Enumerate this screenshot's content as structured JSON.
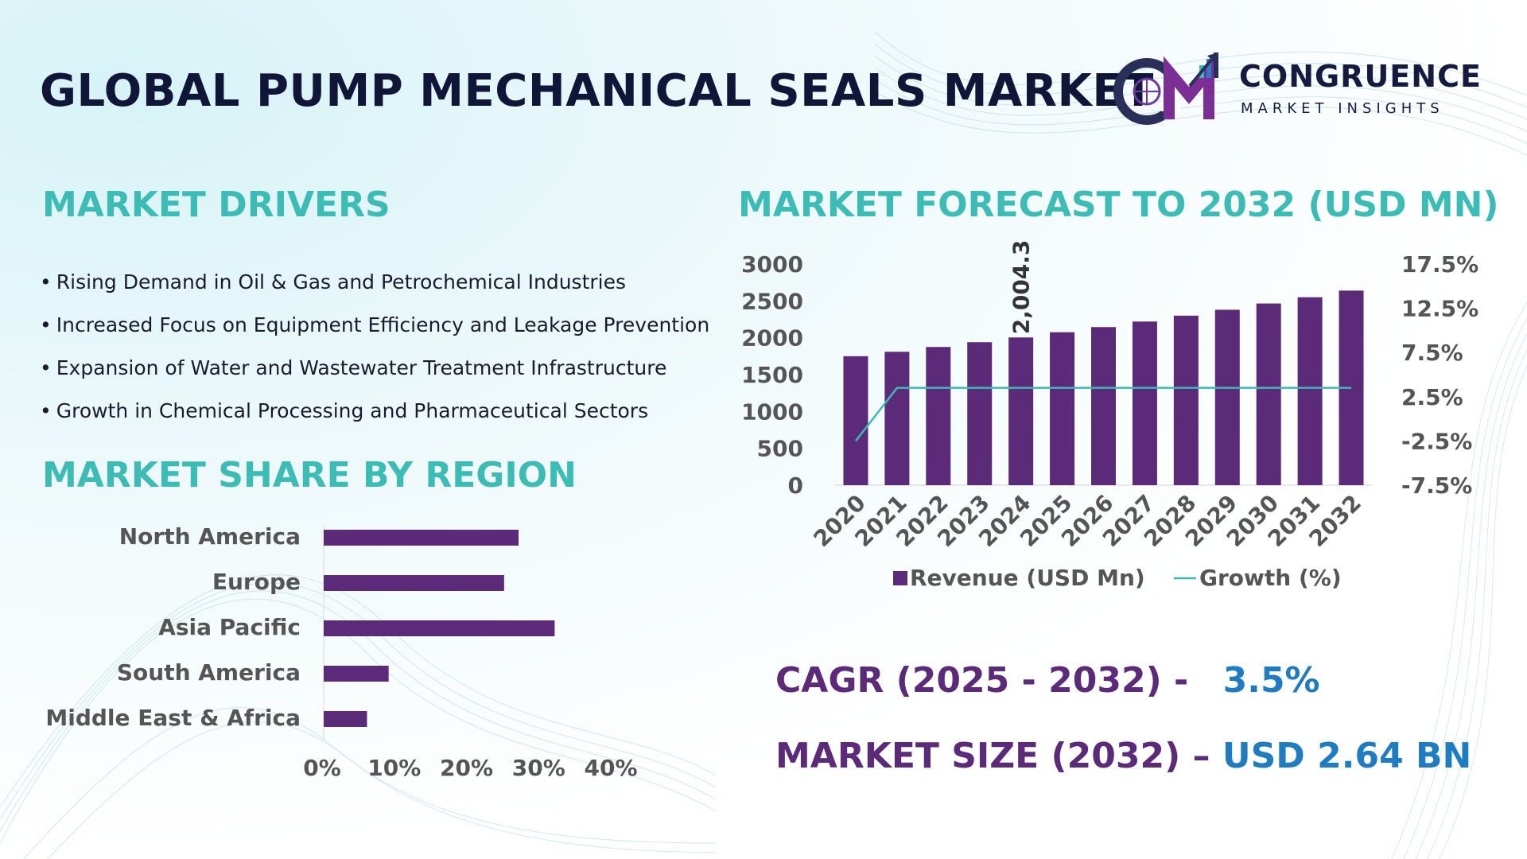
{
  "header": {
    "title": "GLOBAL PUMP MECHANICAL SEALS MARKET"
  },
  "logo": {
    "initials": "CM",
    "name": "CONGRUENCE",
    "tagline": "MARKET INSIGHTS"
  },
  "drivers": {
    "title": "MARKET DRIVERS",
    "items": [
      "Rising Demand in Oil & Gas and Petrochemical Industries",
      "Increased Focus on Equipment Efficiency and Leakage Prevention",
      "Expansion of Water and Wastewater Treatment Infrastructure",
      "Growth in Chemical Processing and Pharmaceutical Sectors"
    ]
  },
  "region": {
    "title": "MARKET SHARE BY REGION"
  },
  "forecast": {
    "title": "MARKET FORECAST TO 2032 (USD MN)"
  },
  "stats": {
    "cagr_label": "CAGR (2025 - 2032) -",
    "cagr_value": "3.5%",
    "size_label": "MARKET SIZE (2032) –",
    "size_value": "USD 2.64 BN"
  },
  "colors": {
    "bar": "#5b2a78",
    "line": "#3cb8b8",
    "teal": "#3cbcb4",
    "navy": "#101638",
    "accent": "#1f7cc0"
  },
  "chart_data": [
    {
      "type": "bar",
      "orientation": "horizontal",
      "title": "MARKET SHARE BY REGION",
      "categories": [
        "North America",
        "Europe",
        "Asia Pacific",
        "South America",
        "Middle East & Africa"
      ],
      "values": [
        27,
        25,
        32,
        9,
        6
      ],
      "xlim": [
        0,
        40
      ],
      "xticks": [
        "0%",
        "10%",
        "20%",
        "30%",
        "40%"
      ]
    },
    {
      "type": "bar",
      "title": "MARKET FORECAST TO 2032 (USD MN)",
      "categories": [
        "2020",
        "2021",
        "2022",
        "2023",
        "2024",
        "2025",
        "2026",
        "2027",
        "2028",
        "2029",
        "2030",
        "2031",
        "2032"
      ],
      "series": [
        {
          "name": "Revenue (USD Mn)",
          "type": "bar",
          "axis": "left",
          "values": [
            1750,
            1810,
            1875,
            1940,
            2004.3,
            2075,
            2145,
            2220,
            2300,
            2380,
            2465,
            2550,
            2640
          ]
        },
        {
          "name": "Growth (%)",
          "type": "line",
          "axis": "right",
          "values": [
            -2.5,
            3.5,
            3.5,
            3.5,
            3.5,
            3.5,
            3.5,
            3.5,
            3.5,
            3.5,
            3.5,
            3.5,
            3.5
          ]
        }
      ],
      "data_label": {
        "index": 4,
        "text": "2,004.3"
      },
      "ylim": [
        0,
        3000
      ],
      "yticks": [
        "3000",
        "2500",
        "2000",
        "1500",
        "1000",
        "500",
        "0"
      ],
      "y2lim": [
        -7.5,
        17.5
      ],
      "y2ticks": [
        "17.5%",
        "12.5%",
        "7.5%",
        "2.5%",
        "-2.5%",
        "-7.5%"
      ],
      "legend": "bottom"
    }
  ]
}
